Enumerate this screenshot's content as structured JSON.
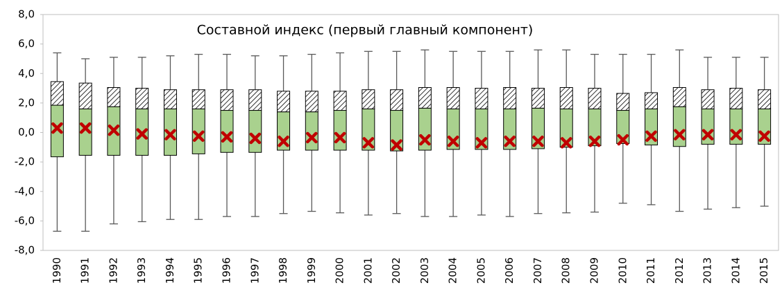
{
  "chart_data": {
    "type": "box",
    "title": "Составной индекс  (первый главный компонент)",
    "categories": [
      "1990",
      "1991",
      "1992",
      "1993",
      "1994",
      "1995",
      "1996",
      "1997",
      "1998",
      "1999",
      "2000",
      "2001",
      "2002",
      "2003",
      "2004",
      "2005",
      "2006",
      "2007",
      "2008",
      "2009",
      "2010",
      "2011",
      "2012",
      "2013",
      "2014",
      "2015"
    ],
    "high": [
      5.4,
      5.0,
      5.1,
      5.1,
      5.2,
      5.3,
      5.3,
      5.2,
      5.2,
      5.3,
      5.4,
      5.5,
      5.5,
      5.6,
      5.5,
      5.5,
      5.5,
      5.6,
      5.6,
      5.3,
      5.3,
      5.3,
      5.6,
      5.1,
      5.1,
      5.1
    ],
    "q3": [
      3.45,
      3.35,
      3.05,
      3.0,
      2.9,
      2.9,
      2.9,
      2.9,
      2.8,
      2.8,
      2.8,
      2.9,
      2.9,
      3.05,
      3.05,
      3.0,
      3.05,
      3.0,
      3.05,
      3.0,
      2.65,
      2.7,
      3.05,
      2.9,
      3.0,
      2.9
    ],
    "median": [
      1.85,
      1.6,
      1.75,
      1.6,
      1.6,
      1.6,
      1.5,
      1.5,
      1.4,
      1.4,
      1.5,
      1.6,
      1.5,
      1.65,
      1.6,
      1.6,
      1.6,
      1.65,
      1.6,
      1.6,
      1.5,
      1.6,
      1.75,
      1.6,
      1.6,
      1.6
    ],
    "q1": [
      -1.65,
      -1.55,
      -1.55,
      -1.55,
      -1.55,
      -1.45,
      -1.35,
      -1.35,
      -1.2,
      -1.2,
      -1.2,
      -1.2,
      -1.25,
      -1.2,
      -1.15,
      -1.15,
      -1.15,
      -1.1,
      -1.0,
      -0.9,
      -0.75,
      -0.85,
      -0.95,
      -0.8,
      -0.8,
      -0.8
    ],
    "low": [
      -6.7,
      -6.7,
      -6.2,
      -6.05,
      -5.9,
      -5.9,
      -5.7,
      -5.7,
      -5.5,
      -5.35,
      -5.45,
      -5.6,
      -5.5,
      -5.7,
      -5.7,
      -5.6,
      -5.7,
      -5.5,
      -5.45,
      -5.4,
      -4.8,
      -4.9,
      -5.35,
      -5.2,
      -5.1,
      -5.0
    ],
    "mean": [
      0.3,
      0.3,
      0.15,
      -0.1,
      -0.15,
      -0.25,
      -0.3,
      -0.4,
      -0.6,
      -0.35,
      -0.35,
      -0.7,
      -0.85,
      -0.5,
      -0.6,
      -0.7,
      -0.6,
      -0.6,
      -0.7,
      -0.6,
      -0.5,
      -0.25,
      -0.15,
      -0.15,
      -0.15,
      -0.25
    ],
    "lower_box_color": "#a9d18e",
    "mean_color": "#c00000",
    "ylim": [
      -8,
      8
    ],
    "yticks": [
      {
        "value": -8,
        "label": "-8,0"
      },
      {
        "value": -6,
        "label": "-6,0"
      },
      {
        "value": -4,
        "label": "-4,0"
      },
      {
        "value": -2,
        "label": "-2,0"
      },
      {
        "value": 0,
        "label": "0,0"
      },
      {
        "value": 2,
        "label": "2,0"
      },
      {
        "value": 4,
        "label": "4,0"
      },
      {
        "value": 6,
        "label": "6,0"
      },
      {
        "value": 8,
        "label": "8,0"
      }
    ],
    "grid": false
  }
}
